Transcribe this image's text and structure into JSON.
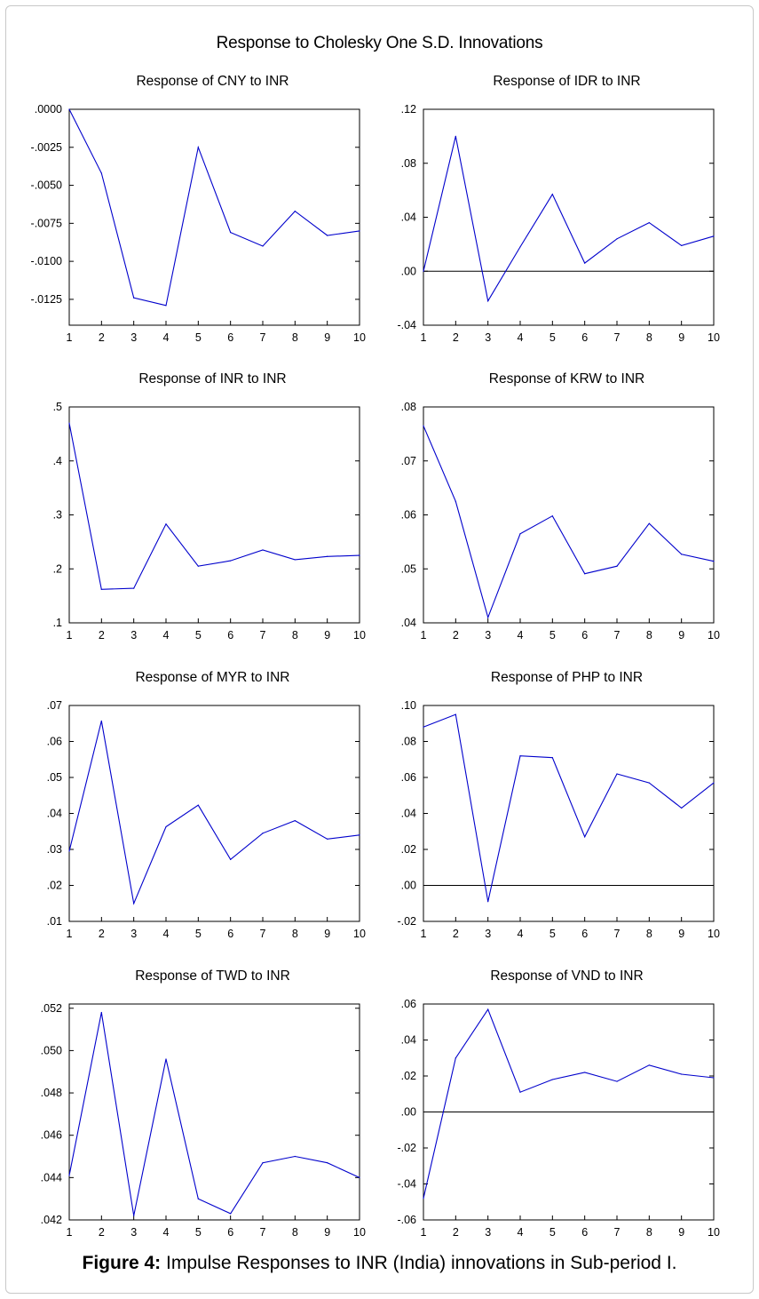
{
  "main_title": "Response to Cholesky One S.D. Innovations",
  "caption": {
    "label": "Figure 4:",
    "text": " Impulse Responses to INR (India) innovations in Sub-period I."
  },
  "colors": {
    "series": "#0000cc",
    "zero_line": "#000000",
    "frame": "#000000"
  },
  "chart_data": [
    {
      "type": "line",
      "title": "Response of CNY to INR",
      "x": [
        1,
        2,
        3,
        4,
        5,
        6,
        7,
        8,
        9,
        10
      ],
      "y": [
        0.0,
        -0.0042,
        -0.0124,
        -0.0129,
        -0.0025,
        -0.0081,
        -0.009,
        -0.0067,
        -0.0083,
        -0.008
      ],
      "ylim": [
        -0.0142,
        0.0
      ],
      "yticks": [
        0.0,
        -0.0025,
        -0.005,
        -0.0075,
        -0.01,
        -0.0125
      ],
      "ytick_labels": [
        ".0000",
        "-.0025",
        "-.0050",
        "-.0075",
        "-.0100",
        "-.0125"
      ],
      "zero_line": false
    },
    {
      "type": "line",
      "title": "Response of IDR to INR",
      "x": [
        1,
        2,
        3,
        4,
        5,
        6,
        7,
        8,
        9,
        10
      ],
      "y": [
        0.0,
        0.1,
        -0.022,
        0.018,
        0.057,
        0.006,
        0.024,
        0.036,
        0.019,
        0.026
      ],
      "ylim": [
        -0.04,
        0.12
      ],
      "yticks": [
        0.12,
        0.08,
        0.04,
        0.0,
        -0.04
      ],
      "ytick_labels": [
        ".12",
        ".08",
        ".04",
        ".00",
        "-.04"
      ],
      "zero_line": true
    },
    {
      "type": "line",
      "title": "Response of INR to INR",
      "x": [
        1,
        2,
        3,
        4,
        5,
        6,
        7,
        8,
        9,
        10
      ],
      "y": [
        0.47,
        0.162,
        0.164,
        0.283,
        0.205,
        0.215,
        0.235,
        0.217,
        0.223,
        0.225
      ],
      "ylim": [
        0.1,
        0.5
      ],
      "yticks": [
        0.5,
        0.4,
        0.3,
        0.2,
        0.1
      ],
      "ytick_labels": [
        ".5",
        ".4",
        ".3",
        ".2",
        ".1"
      ],
      "zero_line": false
    },
    {
      "type": "line",
      "title": "Response of KRW to INR",
      "x": [
        1,
        2,
        3,
        4,
        5,
        6,
        7,
        8,
        9,
        10
      ],
      "y": [
        0.0765,
        0.0625,
        0.041,
        0.0565,
        0.0598,
        0.0491,
        0.0505,
        0.0584,
        0.0527,
        0.0514
      ],
      "ylim": [
        0.04,
        0.08
      ],
      "yticks": [
        0.08,
        0.07,
        0.06,
        0.05,
        0.04
      ],
      "ytick_labels": [
        ".08",
        ".07",
        ".06",
        ".05",
        ".04"
      ],
      "zero_line": false
    },
    {
      "type": "line",
      "title": "Response of MYR to INR",
      "x": [
        1,
        2,
        3,
        4,
        5,
        6,
        7,
        8,
        9,
        10
      ],
      "y": [
        0.0295,
        0.0657,
        0.015,
        0.0363,
        0.0423,
        0.0272,
        0.0345,
        0.038,
        0.0329,
        0.034
      ],
      "ylim": [
        0.01,
        0.07
      ],
      "yticks": [
        0.07,
        0.06,
        0.05,
        0.04,
        0.03,
        0.02,
        0.01
      ],
      "ytick_labels": [
        ".07",
        ".06",
        ".05",
        ".04",
        ".03",
        ".02",
        ".01"
      ],
      "zero_line": false
    },
    {
      "type": "line",
      "title": "Response of PHP to INR",
      "x": [
        1,
        2,
        3,
        4,
        5,
        6,
        7,
        8,
        9,
        10
      ],
      "y": [
        0.088,
        0.095,
        -0.009,
        0.072,
        0.071,
        0.027,
        0.062,
        0.057,
        0.043,
        0.057
      ],
      "ylim": [
        -0.02,
        0.1
      ],
      "yticks": [
        0.1,
        0.08,
        0.06,
        0.04,
        0.02,
        0.0,
        -0.02
      ],
      "ytick_labels": [
        ".10",
        ".08",
        ".06",
        ".04",
        ".02",
        ".00",
        "-.02"
      ],
      "zero_line": true
    },
    {
      "type": "line",
      "title": "Response of TWD to INR",
      "x": [
        1,
        2,
        3,
        4,
        5,
        6,
        7,
        8,
        9,
        10
      ],
      "y": [
        0.0441,
        0.0518,
        0.0422,
        0.0496,
        0.043,
        0.0423,
        0.0447,
        0.045,
        0.0447,
        0.044
      ],
      "ylim": [
        0.042,
        0.0522
      ],
      "yticks": [
        0.052,
        0.05,
        0.048,
        0.046,
        0.044,
        0.042
      ],
      "ytick_labels": [
        ".052",
        ".050",
        ".048",
        ".046",
        ".044",
        ".042"
      ],
      "zero_line": false
    },
    {
      "type": "line",
      "title": "Response of VND to INR",
      "x": [
        1,
        2,
        3,
        4,
        5,
        6,
        7,
        8,
        9,
        10
      ],
      "y": [
        -0.048,
        0.03,
        0.057,
        0.011,
        0.018,
        0.022,
        0.017,
        0.026,
        0.021,
        0.019
      ],
      "ylim": [
        -0.06,
        0.06
      ],
      "yticks": [
        0.06,
        0.04,
        0.02,
        0.0,
        -0.02,
        -0.04,
        -0.06
      ],
      "ytick_labels": [
        ".06",
        ".04",
        ".02",
        ".00",
        "-.02",
        "-.04",
        "-.06"
      ],
      "zero_line": true
    }
  ]
}
